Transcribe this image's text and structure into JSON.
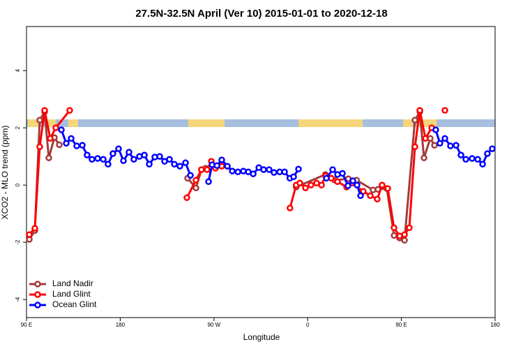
{
  "chart_data": {
    "type": "line",
    "title": "27.5N-32.5N April (Ver 10)   2015-01-01 to 2020-12-18",
    "x_label": "Longitude",
    "y_label": "XCO2 - MLO trend (ppm)",
    "xlim": [
      90,
      540
    ],
    "ylim": [
      -4.63,
      5.54
    ],
    "xticks": [
      {
        "value": 90,
        "label": "90 E"
      },
      180,
      {
        "value": 270,
        "label": "90 W"
      },
      {
        "value": 360,
        "label": "0"
      },
      {
        "value": 450,
        "label": "90 E"
      },
      {
        "value": 540,
        "label": "180"
      }
    ],
    "yticks": [
      -4,
      -2,
      0,
      2,
      4
    ],
    "legend": "bottomleft",
    "series": [
      {
        "name": "Land Nadir",
        "color": "#a33b3b",
        "x": [
          92.7,
          98,
          102.7,
          107.4,
          111.4,
          116.8,
          121.5,
          null,
          244.7,
          252.7,
          258,
          262,
          null,
          349,
          377,
          386,
          399,
          407,
          422.8,
          427.5,
          436,
          443,
          448.3,
          453,
          463,
          467.7,
          471.7,
          477.7,
          481.8
        ],
        "values": [
          -1.9,
          -1.59,
          2.27,
          2.56,
          0.95,
          1.66,
          1.41,
          null,
          0.24,
          -0.1,
          0.54,
          0.59,
          null,
          -0.07,
          0.37,
          0.17,
          0.22,
          0.17,
          -0.17,
          -0.15,
          -0.12,
          -1.76,
          -1.85,
          -1.93,
          2.27,
          2.56,
          0.95,
          1.63,
          1.39
        ]
      },
      {
        "name": "Land Glint",
        "color": "#ff0000",
        "x": [
          92.7,
          98,
          102.7,
          107.4,
          112.8,
          118.1,
          131.5,
          null,
          244,
          252.7,
          258,
          263.4,
          267.5,
          271.5,
          277.5,
          null,
          343,
          349,
          352.5,
          357.9,
          363.2,
          368.6,
          373.3,
          377.3,
          382.7,
          388.7,
          397.4,
          402.7,
          413.4,
          420.1,
          426.8,
          431.5,
          436.9,
          442.9,
          448.3,
          453,
          457.6,
          463,
          467.7,
          473.1,
          479.1,
          null,
          491.8
        ],
        "values": [
          -1.73,
          -1.51,
          1.34,
          2.61,
          1.63,
          2.0,
          2.61,
          null,
          -0.44,
          0.17,
          0.54,
          0.54,
          0.83,
          0.59,
          0.66,
          null,
          -0.8,
          0,
          0.07,
          -0.1,
          0,
          0.07,
          0,
          0.32,
          0.24,
          0.12,
          -0.07,
          0.07,
          -0.22,
          -0.37,
          -0.49,
          0,
          -0.12,
          -1.49,
          -1.78,
          -1.73,
          -1.49,
          1.34,
          2.61,
          1.63,
          2.0,
          null,
          2.61
        ]
      },
      {
        "name": "Ocean Glint",
        "color": "#0000ff",
        "x": [
          123.5,
          128.2,
          132.9,
          138.2,
          143.6,
          148.2,
          152.9,
          158.3,
          163.7,
          168.3,
          173,
          178.4,
          183.1,
          188.4,
          193.1,
          198.5,
          203.2,
          207.9,
          213.2,
          217.9,
          222.6,
          227.3,
          232,
          237.3,
          242.7,
          247.4,
          null,
          264.8,
          268.2,
          272.9,
          277.5,
          282.9,
          287.6,
          293,
          298.3,
          303,
          307.7,
          313.1,
          317.7,
          323,
          327.7,
          333.1,
          337.8,
          342.9,
          346.5,
          351.2,
          null,
          378,
          384,
          388.7,
          393.4,
          398.7,
          403.4,
          407.4,
          410.8,
          null,
          483,
          487,
          491.8,
          497.1,
          502.5,
          507.2,
          511.9,
          517.9,
          523.3,
          528,
          532.6,
          537.3
        ],
        "values": [
          1.93,
          1.46,
          1.63,
          1.37,
          1.39,
          1.05,
          0.9,
          0.93,
          0.9,
          0.73,
          1.1,
          1.27,
          0.85,
          1.15,
          0.9,
          1.0,
          1.05,
          0.73,
          0.98,
          1.0,
          0.83,
          0.9,
          0.73,
          0.66,
          0.78,
          0.34,
          null,
          0.12,
          0.71,
          0.68,
          0.88,
          0.66,
          0.49,
          0.46,
          0.49,
          0.46,
          0.39,
          0.61,
          0.54,
          0.54,
          0.44,
          0.46,
          0.46,
          0.24,
          0.29,
          0.56,
          null,
          0.24,
          0.54,
          0.37,
          0.41,
          -0.02,
          0.15,
          0,
          -0.37,
          null,
          1.93,
          1.46,
          1.63,
          1.37,
          1.39,
          1.05,
          0.9,
          0.93,
          0.9,
          0.73,
          1.1,
          1.27
        ]
      }
    ]
  }
}
